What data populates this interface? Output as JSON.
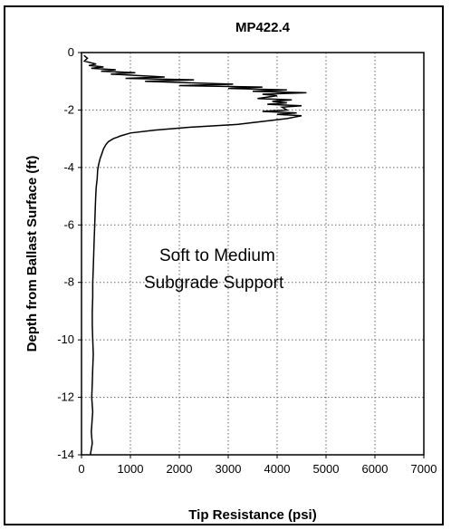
{
  "chart_data": {
    "type": "line",
    "title": "MP422.4",
    "xlabel": "Tip Resistance (psi)",
    "ylabel": "Depth from Ballast Surface (ft)",
    "xlim": [
      0,
      7000
    ],
    "ylim": [
      -14,
      0
    ],
    "xticks": [
      0,
      1000,
      2000,
      3000,
      4000,
      5000,
      6000,
      7000
    ],
    "yticks": [
      0,
      -2,
      -4,
      -6,
      -8,
      -10,
      -12,
      -14
    ],
    "grid": true,
    "annotation": [
      "Soft to Medium",
      "Subgrade Support"
    ],
    "series": [
      {
        "x": [
          50,
          120,
          60,
          300,
          150,
          450,
          200,
          700,
          400,
          1100,
          600,
          1700,
          900,
          2300,
          1300,
          3100,
          2000,
          3700,
          3000,
          4200,
          3500,
          4600,
          3700,
          4000,
          3600,
          4300,
          3900,
          4200,
          3800,
          4500,
          4100,
          4200,
          3700,
          4400,
          4000,
          4500,
          4200,
          3200,
          2200,
          1500,
          1000,
          800,
          650,
          550,
          500,
          450,
          420,
          380,
          350,
          330,
          320,
          300,
          290,
          280,
          270,
          260,
          250,
          240,
          230,
          230,
          220,
          220,
          230,
          240,
          230,
          220,
          210,
          220,
          230,
          220,
          210,
          200,
          210,
          220,
          200,
          190,
          180
        ],
        "y": [
          -0.1,
          -0.2,
          -0.3,
          -0.4,
          -0.45,
          -0.5,
          -0.55,
          -0.6,
          -0.65,
          -0.7,
          -0.75,
          -0.85,
          -0.9,
          -0.95,
          -1.0,
          -1.1,
          -1.15,
          -1.2,
          -1.25,
          -1.3,
          -1.35,
          -1.4,
          -1.45,
          -1.5,
          -1.6,
          -1.65,
          -1.7,
          -1.75,
          -1.8,
          -1.85,
          -1.9,
          -2.0,
          -2.05,
          -2.1,
          -2.15,
          -2.2,
          -2.3,
          -2.5,
          -2.6,
          -2.7,
          -2.8,
          -2.9,
          -3.0,
          -3.1,
          -3.2,
          -3.35,
          -3.5,
          -3.7,
          -3.9,
          -4.1,
          -4.4,
          -4.7,
          -5.0,
          -5.5,
          -6.0,
          -6.5,
          -7.0,
          -7.5,
          -8.0,
          -8.5,
          -9.0,
          -9.5,
          -10.0,
          -10.5,
          -11.0,
          -11.5,
          -12.0,
          -12.3,
          -12.5,
          -12.7,
          -13.0,
          -13.2,
          -13.4,
          -13.6,
          -13.8,
          -13.9,
          -14.0
        ]
      }
    ]
  }
}
